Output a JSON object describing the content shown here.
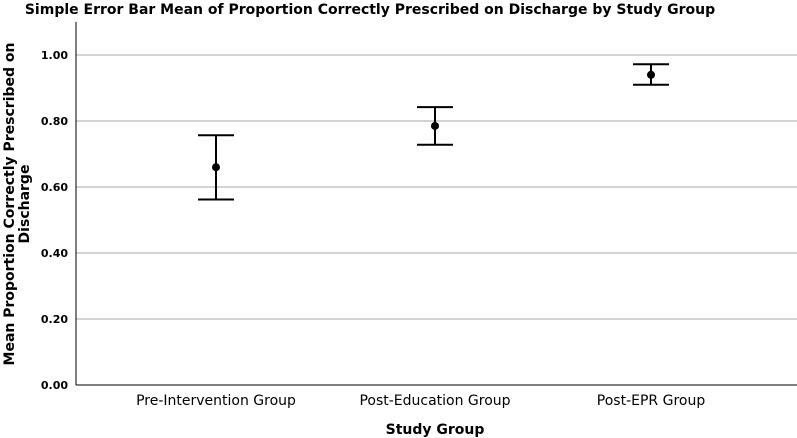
{
  "chart_data": {
    "type": "errorbar",
    "title": "Simple Error Bar Mean of Proportion Correctly Prescribed on Discharge by Study Group",
    "xlabel": "Study Group",
    "ylabel_lines": [
      "Mean Proportion Correctly Prescribed on",
      "Discharge"
    ],
    "categories": [
      "Pre-Intervention Group",
      "Post-Education Group",
      "Post-EPR Group"
    ],
    "means": [
      0.66,
      0.785,
      0.94
    ],
    "lower": [
      0.562,
      0.728,
      0.91
    ],
    "upper": [
      0.757,
      0.842,
      0.972
    ],
    "ylim": [
      0,
      1.1
    ],
    "yticks": [
      "0.00",
      "0.20",
      "0.40",
      "0.60",
      "0.80",
      "1.00"
    ],
    "grid": true,
    "legend": false
  }
}
